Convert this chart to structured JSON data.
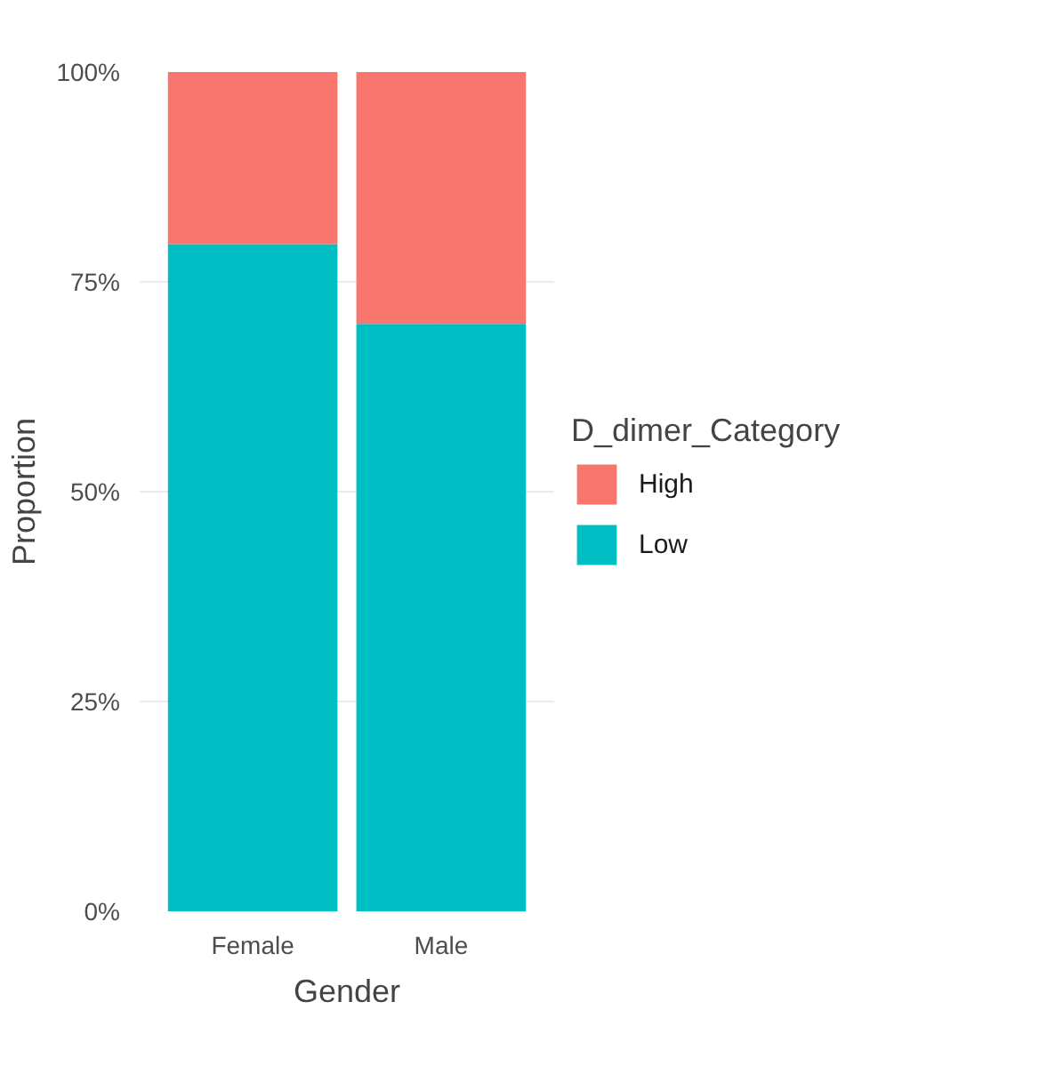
{
  "chart_data": {
    "type": "bar",
    "stacked": true,
    "xlabel": "Gender",
    "ylabel": "Proportion",
    "legend_title": "D_dimer_Category",
    "categories": [
      "Female",
      "Male"
    ],
    "series": [
      {
        "name": "Low",
        "color": "#00bfc4",
        "values": [
          79.5,
          70
        ]
      },
      {
        "name": "High",
        "color": "#f8766d",
        "values": [
          20.5,
          30
        ]
      }
    ],
    "ylim": [
      0,
      100
    ],
    "yticks": [
      {
        "value": 0,
        "label": "0%"
      },
      {
        "value": 25,
        "label": "25%"
      },
      {
        "value": 50,
        "label": "50%"
      },
      {
        "value": 75,
        "label": "75%"
      },
      {
        "value": 100,
        "label": "100%"
      }
    ],
    "grid": true,
    "legend": "right"
  }
}
